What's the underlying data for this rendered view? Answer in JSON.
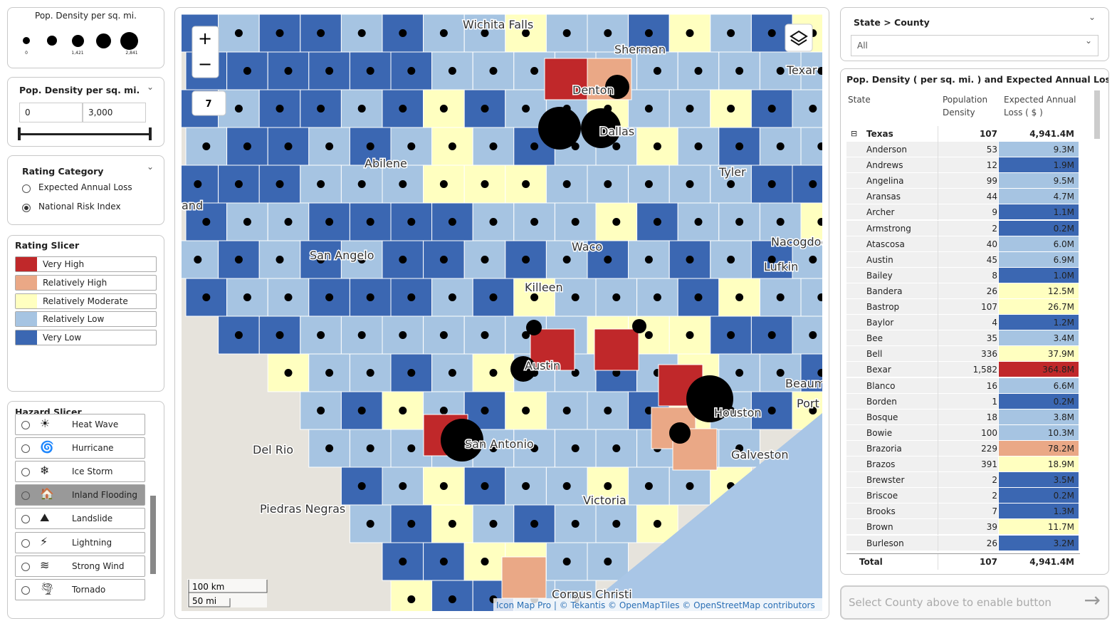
{
  "size_legend": {
    "title": "Pop. Density per sq. mi.",
    "labels": [
      "0",
      "1,421",
      "2,841"
    ]
  },
  "density_filter": {
    "title": "Pop. Density per sq. mi.",
    "min": "0",
    "max": "3,000"
  },
  "rating_category": {
    "title": "Rating Category",
    "options": [
      "Expected Annual Loss",
      "National Risk Index"
    ],
    "selected": 1
  },
  "rating_slicer": {
    "title": "Rating Slicer",
    "items": [
      {
        "label": "Very High",
        "color": "#c0282a"
      },
      {
        "label": "Relatively High",
        "color": "#eaa886"
      },
      {
        "label": "Relatively Moderate",
        "color": "#ffffc0"
      },
      {
        "label": "Relatively Low",
        "color": "#a6c4e2"
      },
      {
        "label": "Very Low",
        "color": "#3b67b2"
      }
    ]
  },
  "hazard_slicer": {
    "title": "Hazard Slicer",
    "items": [
      "Heat Wave",
      "Hurricane",
      "Ice Storm",
      "Inland Flooding",
      "Landslide",
      "Lightning",
      "Strong Wind",
      "Tornado"
    ],
    "selected": 3
  },
  "map": {
    "zoom": "7",
    "cities": [
      "Wichita Falls",
      "Sherman",
      "Texar",
      "Denton",
      "Dallas",
      "Abilene",
      "Tyler",
      "and",
      "San Angelo",
      "Waco",
      "Nacogdoches",
      "Lufkin",
      "Killeen",
      "Austin",
      "Beaum",
      "Port",
      "Houston",
      "San Antonio",
      "Del Rio",
      "Galveston",
      "Piedras Negras",
      "Victoria",
      "Corpus Christi"
    ],
    "scale": [
      "100 km",
      "50 mi"
    ],
    "attribution": "Icon Map Pro | © Tekantis © OpenMapTiles © OpenStreetMap contributors"
  },
  "filter": {
    "title": "State > County",
    "value": "All"
  },
  "table": {
    "title": "Pop. Density ( per sq. mi. ) and Expected Annual Loss ( $ )",
    "columns": [
      "State",
      "Population Density",
      "Expected Annual Loss ( $ )"
    ],
    "group": {
      "name": "Texas",
      "density": "107",
      "loss": "4,941.4M"
    },
    "rows": [
      {
        "county": "Anderson",
        "density": "53",
        "loss": "9.3M",
        "color": "#a6c4e2"
      },
      {
        "county": "Andrews",
        "density": "12",
        "loss": "1.9M",
        "color": "#3b67b2"
      },
      {
        "county": "Angelina",
        "density": "99",
        "loss": "9.5M",
        "color": "#a6c4e2"
      },
      {
        "county": "Aransas",
        "density": "44",
        "loss": "4.7M",
        "color": "#a6c4e2"
      },
      {
        "county": "Archer",
        "density": "9",
        "loss": "1.1M",
        "color": "#3b67b2"
      },
      {
        "county": "Armstrong",
        "density": "2",
        "loss": "0.2M",
        "color": "#3b67b2"
      },
      {
        "county": "Atascosa",
        "density": "40",
        "loss": "6.0M",
        "color": "#a6c4e2"
      },
      {
        "county": "Austin",
        "density": "45",
        "loss": "6.9M",
        "color": "#a6c4e2"
      },
      {
        "county": "Bailey",
        "density": "8",
        "loss": "1.0M",
        "color": "#3b67b2"
      },
      {
        "county": "Bandera",
        "density": "26",
        "loss": "12.5M",
        "color": "#ffffc0"
      },
      {
        "county": "Bastrop",
        "density": "107",
        "loss": "26.7M",
        "color": "#ffffc0"
      },
      {
        "county": "Baylor",
        "density": "4",
        "loss": "1.2M",
        "color": "#3b67b2"
      },
      {
        "county": "Bee",
        "density": "35",
        "loss": "3.4M",
        "color": "#a6c4e2"
      },
      {
        "county": "Bell",
        "density": "336",
        "loss": "37.9M",
        "color": "#ffffc0"
      },
      {
        "county": "Bexar",
        "density": "1,582",
        "loss": "364.8M",
        "color": "#c0282a"
      },
      {
        "county": "Blanco",
        "density": "16",
        "loss": "6.6M",
        "color": "#a6c4e2"
      },
      {
        "county": "Borden",
        "density": "1",
        "loss": "0.2M",
        "color": "#3b67b2"
      },
      {
        "county": "Bosque",
        "density": "18",
        "loss": "3.8M",
        "color": "#a6c4e2"
      },
      {
        "county": "Bowie",
        "density": "100",
        "loss": "10.3M",
        "color": "#a6c4e2"
      },
      {
        "county": "Brazoria",
        "density": "229",
        "loss": "78.2M",
        "color": "#eaa886"
      },
      {
        "county": "Brazos",
        "density": "391",
        "loss": "18.9M",
        "color": "#ffffc0"
      },
      {
        "county": "Brewster",
        "density": "2",
        "loss": "3.5M",
        "color": "#3b67b2"
      },
      {
        "county": "Briscoe",
        "density": "2",
        "loss": "0.2M",
        "color": "#3b67b2"
      },
      {
        "county": "Brooks",
        "density": "7",
        "loss": "1.3M",
        "color": "#3b67b2"
      },
      {
        "county": "Brown",
        "density": "39",
        "loss": "11.7M",
        "color": "#ffffc0"
      },
      {
        "county": "Burleson",
        "density": "26",
        "loss": "3.2M",
        "color": "#3b67b2"
      }
    ],
    "total": {
      "label": "Total",
      "density": "107",
      "loss": "4,941.4M"
    }
  },
  "button": "Select County above to enable button"
}
